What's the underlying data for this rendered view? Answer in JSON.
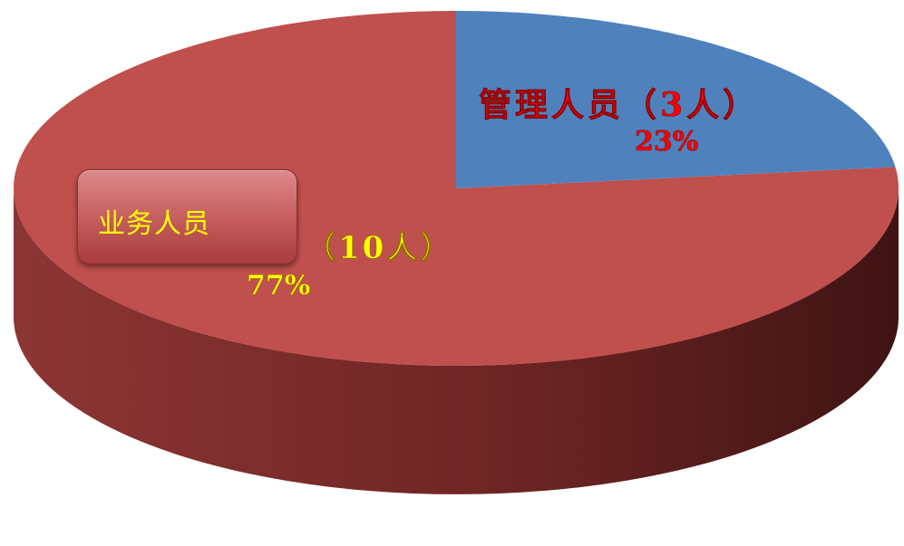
{
  "chart_data": {
    "type": "pie",
    "style": "3d",
    "slices": [
      {
        "label": "业务人员",
        "count_text": "（10人）",
        "percent_text": "77%",
        "value": 10,
        "color": "#c0504d",
        "label_color": "#ffff00"
      },
      {
        "label": "管理人员（3人）",
        "percent_text": "23%",
        "value": 3,
        "color": "#4f81bd",
        "label_color": "#ff0000"
      }
    ]
  }
}
